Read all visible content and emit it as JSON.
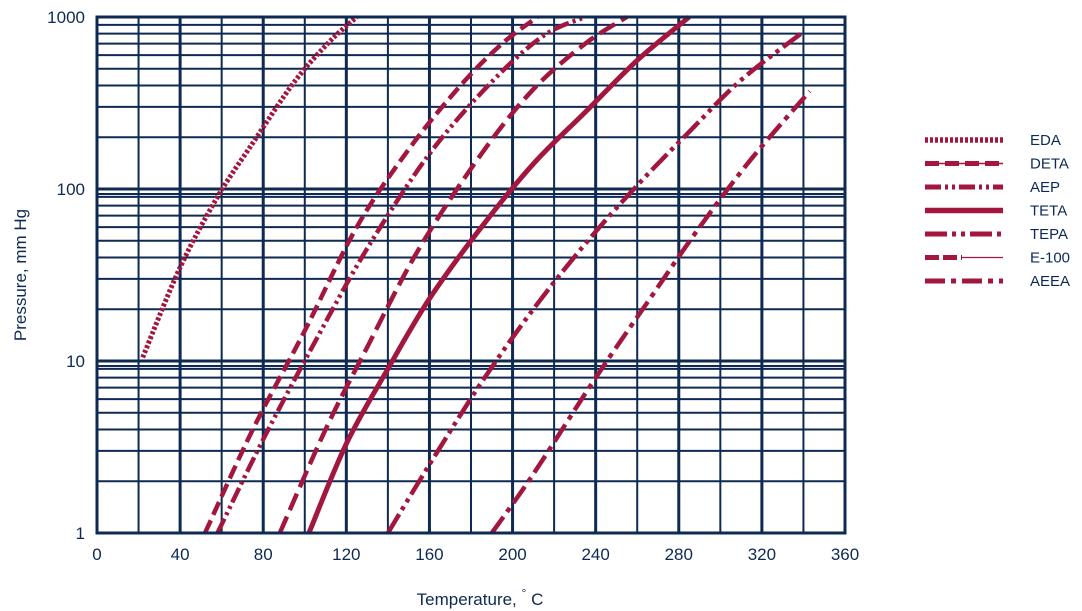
{
  "colors": {
    "grid": "#0e2a52",
    "series": "#a3173f",
    "text": "#0e2a52"
  },
  "chart_data": {
    "type": "line",
    "title": "",
    "xlabel": "Temperature,",
    "xlabel_unit": "C",
    "ylabel": "Pressure, mm Hg",
    "xlim": [
      0,
      360
    ],
    "ylim": [
      1,
      1000
    ],
    "yscale": "log",
    "grid": true,
    "legend_position": "right",
    "x_ticks": [
      0,
      40,
      80,
      120,
      160,
      200,
      240,
      280,
      320,
      360
    ],
    "x_tick_labels": [
      "0",
      "40",
      "80",
      "120",
      "160",
      "200",
      "240",
      "280",
      "320",
      "360"
    ],
    "y_ticks": [
      1,
      10,
      100,
      1000
    ],
    "y_tick_labels": [
      "1",
      "10",
      "100",
      "1000"
    ],
    "series": [
      {
        "name": "EDA",
        "style": "dotted",
        "x": [
          22,
          40,
          58,
          75,
          95,
          112,
          125
        ],
        "y": [
          10.5,
          35,
          90,
          185,
          420,
          720,
          1000
        ]
      },
      {
        "name": "DETA",
        "style": "dash-thin",
        "x": [
          52,
          75,
          100,
          125,
          150,
          175,
          195,
          212
        ],
        "y": [
          1,
          4,
          15,
          60,
          170,
          400,
          700,
          1000
        ]
      },
      {
        "name": "AEP",
        "style": "dash-dot-dot",
        "x": [
          58,
          80,
          105,
          130,
          160,
          190,
          215,
          235
        ],
        "y": [
          1,
          3.5,
          13,
          45,
          160,
          420,
          780,
          1000
        ]
      },
      {
        "name": "TETA",
        "style": "solid",
        "x": [
          102,
          120,
          140,
          160,
          185,
          210,
          235,
          260,
          285
        ],
        "y": [
          1,
          3.3,
          9,
          23,
          60,
          140,
          280,
          560,
          1000
        ]
      },
      {
        "name": "TEPA",
        "style": "dash-dot-dot-long",
        "x": [
          140,
          160,
          185,
          210,
          235,
          260,
          285,
          310,
          340
        ],
        "y": [
          1,
          2.5,
          7.5,
          20,
          48,
          105,
          215,
          430,
          820
        ]
      },
      {
        "name": "E-100",
        "style": "dash-then-thin",
        "x": [
          88,
          110,
          130,
          155,
          185,
          210,
          235,
          255
        ],
        "y": [
          1,
          4,
          12,
          45,
          160,
          380,
          700,
          1000
        ]
      },
      {
        "name": "AEEA",
        "style": "dash-dot-long",
        "x": [
          190,
          210,
          240,
          265,
          290,
          315,
          343
        ],
        "y": [
          1,
          2.2,
          8,
          22,
          60,
          150,
          370
        ]
      }
    ]
  }
}
